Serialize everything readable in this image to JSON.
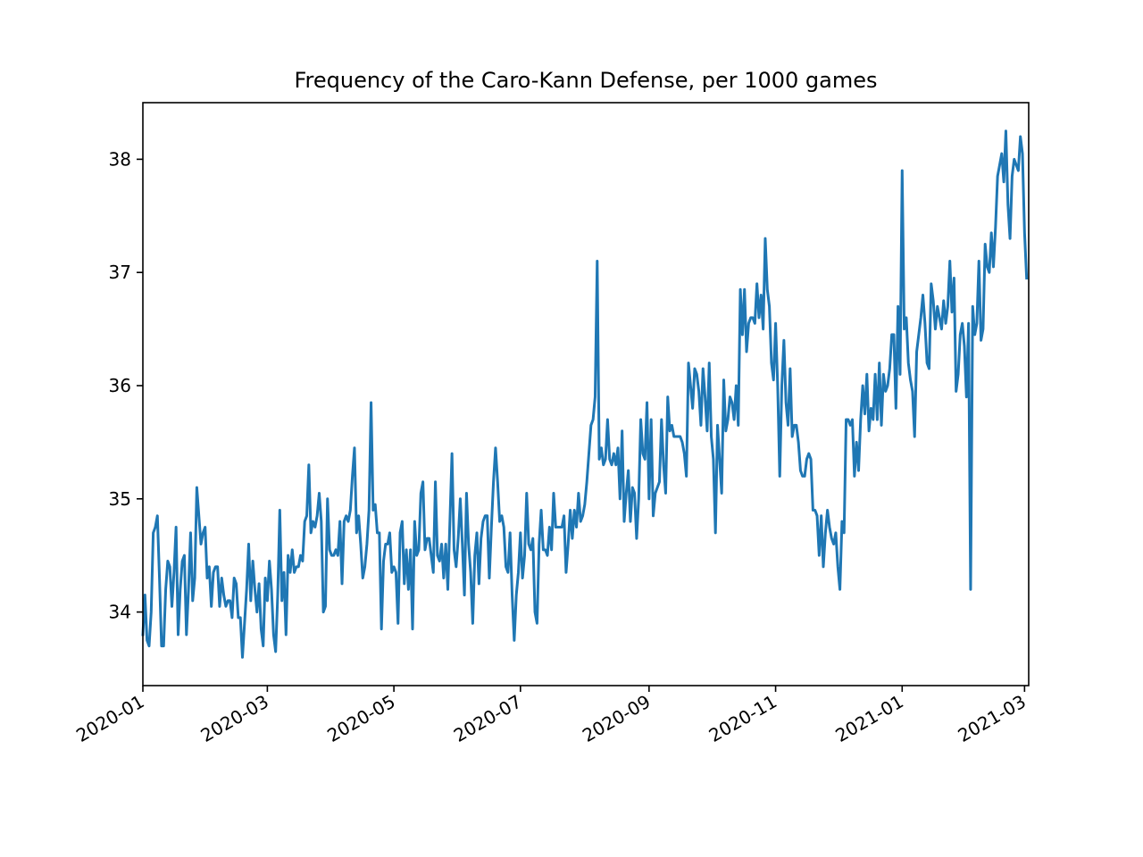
{
  "chart_data": {
    "type": "line",
    "title": "Frequency of the Caro-Kann Defense, per 1000 games",
    "xlabel": "",
    "ylabel": "",
    "x_tick_labels": [
      "2020-01",
      "2020-03",
      "2020-05",
      "2020-07",
      "2020-09",
      "2020-11",
      "2021-01",
      "2021-03"
    ],
    "x_ticks": [
      "2020-01-01",
      "2020-03-01",
      "2020-05-01",
      "2020-07-01",
      "2020-09-01",
      "2020-11-01",
      "2021-01-01",
      "2021-03-01"
    ],
    "y_ticks": [
      34,
      35,
      36,
      37,
      38
    ],
    "xlim": [
      "2020-01-01",
      "2021-03-03"
    ],
    "ylim": [
      33.35,
      38.5
    ],
    "grid": false,
    "legend": "none",
    "series": [
      {
        "color": "#1f77b4",
        "x_start": "2020-01-01",
        "x_step_days": 1,
        "values": [
          33.8,
          34.15,
          33.75,
          33.7,
          34.0,
          34.7,
          34.75,
          34.85,
          34.3,
          33.7,
          33.7,
          34.2,
          34.45,
          34.4,
          34.05,
          34.35,
          34.75,
          33.8,
          34.2,
          34.45,
          34.5,
          33.8,
          34.2,
          34.7,
          34.1,
          34.3,
          35.1,
          34.85,
          34.6,
          34.7,
          34.75,
          34.3,
          34.4,
          34.05,
          34.35,
          34.4,
          34.4,
          34.05,
          34.3,
          34.15,
          34.05,
          34.1,
          34.1,
          33.95,
          34.3,
          34.25,
          33.95,
          33.95,
          33.6,
          33.9,
          34.2,
          34.6,
          34.1,
          34.45,
          34.2,
          34.0,
          34.25,
          33.85,
          33.7,
          34.3,
          34.1,
          34.45,
          34.2,
          33.8,
          33.65,
          34.15,
          34.9,
          34.1,
          34.35,
          33.8,
          34.5,
          34.35,
          34.55,
          34.35,
          34.4,
          34.4,
          34.5,
          34.45,
          34.8,
          34.85,
          35.3,
          34.7,
          34.8,
          34.75,
          34.85,
          35.05,
          34.8,
          34.0,
          34.05,
          35.0,
          34.55,
          34.5,
          34.5,
          34.55,
          34.5,
          34.8,
          34.25,
          34.8,
          34.85,
          34.8,
          34.9,
          35.2,
          35.45,
          34.7,
          34.85,
          34.6,
          34.3,
          34.4,
          34.6,
          34.9,
          35.85,
          34.9,
          34.95,
          34.7,
          34.7,
          33.85,
          34.45,
          34.6,
          34.6,
          34.7,
          34.35,
          34.4,
          34.35,
          33.9,
          34.7,
          34.8,
          34.25,
          34.55,
          34.2,
          34.55,
          33.85,
          34.8,
          34.5,
          34.55,
          35.05,
          35.15,
          34.55,
          34.65,
          34.65,
          34.5,
          34.35,
          35.15,
          34.5,
          34.45,
          34.6,
          34.3,
          34.6,
          34.2,
          34.8,
          35.4,
          34.55,
          34.4,
          34.65,
          35.0,
          34.6,
          34.15,
          35.05,
          34.6,
          34.35,
          33.9,
          34.5,
          34.7,
          34.25,
          34.65,
          34.8,
          34.85,
          34.85,
          34.3,
          34.75,
          35.15,
          35.45,
          35.15,
          34.8,
          34.85,
          34.75,
          34.4,
          34.35,
          34.7,
          34.15,
          33.75,
          34.15,
          34.35,
          34.7,
          34.3,
          34.5,
          35.05,
          34.6,
          34.55,
          34.65,
          34.0,
          33.9,
          34.6,
          34.9,
          34.55,
          34.55,
          34.5,
          34.75,
          34.55,
          35.05,
          34.75,
          34.75,
          34.75,
          34.75,
          34.85,
          34.35,
          34.6,
          34.9,
          34.65,
          34.9,
          34.75,
          35.05,
          34.8,
          34.85,
          34.95,
          35.15,
          35.4,
          35.65,
          35.7,
          35.9,
          37.1,
          35.35,
          35.45,
          35.3,
          35.35,
          35.7,
          35.35,
          35.3,
          35.4,
          35.3,
          35.45,
          35.0,
          35.6,
          34.8,
          35.05,
          35.25,
          34.8,
          35.1,
          35.05,
          34.65,
          35.0,
          35.7,
          35.4,
          35.35,
          35.85,
          35.0,
          35.7,
          34.85,
          35.05,
          35.1,
          35.15,
          35.7,
          35.3,
          35.05,
          35.9,
          35.6,
          35.65,
          35.55,
          35.55,
          35.55,
          35.55,
          35.5,
          35.4,
          35.2,
          36.2,
          36.0,
          35.8,
          36.15,
          36.1,
          35.95,
          35.65,
          36.15,
          35.9,
          35.6,
          36.2,
          35.55,
          35.35,
          34.7,
          35.65,
          35.35,
          35.05,
          36.05,
          35.6,
          35.7,
          35.9,
          35.85,
          35.7,
          36.0,
          35.65,
          36.85,
          36.45,
          36.85,
          36.3,
          36.55,
          36.6,
          36.6,
          36.55,
          36.9,
          36.6,
          36.8,
          36.5,
          37.3,
          36.85,
          36.7,
          36.2,
          36.05,
          36.55,
          36.0,
          35.2,
          36.0,
          36.4,
          35.85,
          35.65,
          36.15,
          35.55,
          35.65,
          35.65,
          35.5,
          35.25,
          35.2,
          35.2,
          35.35,
          35.4,
          35.35,
          34.9,
          34.9,
          34.85,
          34.5,
          34.85,
          34.4,
          34.7,
          34.9,
          34.75,
          34.65,
          34.6,
          34.7,
          34.4,
          34.2,
          34.8,
          34.7,
          35.7,
          35.7,
          35.65,
          35.7,
          35.2,
          35.5,
          35.25,
          35.7,
          36.0,
          35.75,
          36.1,
          35.6,
          35.8,
          35.7,
          36.1,
          35.7,
          36.2,
          35.65,
          36.1,
          35.95,
          36.0,
          36.15,
          36.45,
          36.45,
          35.8,
          36.7,
          36.1,
          37.9,
          36.5,
          36.6,
          36.2,
          36.05,
          35.95,
          35.55,
          36.3,
          36.45,
          36.6,
          36.8,
          36.55,
          36.2,
          36.15,
          36.9,
          36.75,
          36.5,
          36.7,
          36.6,
          36.5,
          36.75,
          36.55,
          36.7,
          37.1,
          36.65,
          36.95,
          35.95,
          36.1,
          36.45,
          36.55,
          36.35,
          35.9,
          36.55,
          34.2,
          36.7,
          36.45,
          36.55,
          37.1,
          36.4,
          36.5,
          37.25,
          37.05,
          37.0,
          37.35,
          37.05,
          37.4,
          37.85,
          37.95,
          38.05,
          37.8,
          38.25,
          37.6,
          37.3,
          37.85,
          38.0,
          37.95,
          37.9,
          38.2,
          38.05,
          37.35,
          36.95
        ]
      }
    ]
  }
}
